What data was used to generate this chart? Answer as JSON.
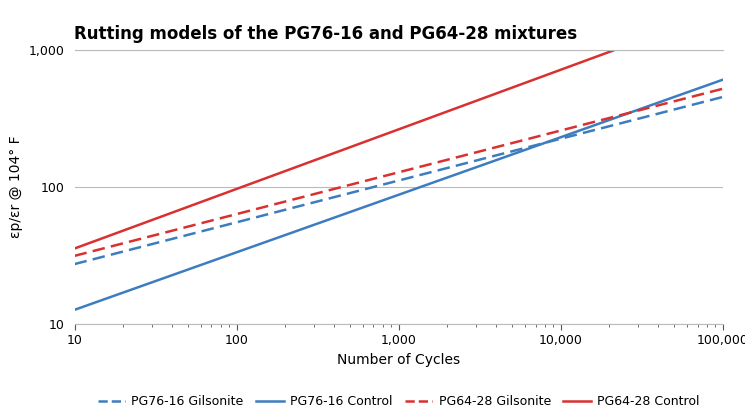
{
  "title": "Rutting models of the PG76-16 and PG64-28 mixtures",
  "xlabel": "Number of Cycles",
  "ylabel": "εp/εr @ 104° F",
  "lines": [
    {
      "label": "PG76-16 Gilsonite",
      "color": "#3d7dbf",
      "linestyle": "dashed",
      "a": 13.5,
      "b": 0.305
    },
    {
      "label": "PG76-16 Control",
      "color": "#3d7dbf",
      "linestyle": "solid",
      "a": 4.8,
      "b": 0.42
    },
    {
      "label": "PG64-28 Gilsonite",
      "color": "#d93030",
      "linestyle": "dashed",
      "a": 15.5,
      "b": 0.305
    },
    {
      "label": "PG64-28 Control",
      "color": "#d93030",
      "linestyle": "solid",
      "a": 13.0,
      "b": 0.435
    }
  ],
  "background_color": "#ffffff",
  "grid_color": "#bbbbbb",
  "title_fontsize": 12,
  "axis_label_fontsize": 10,
  "tick_fontsize": 9,
  "legend_fontsize": 9
}
